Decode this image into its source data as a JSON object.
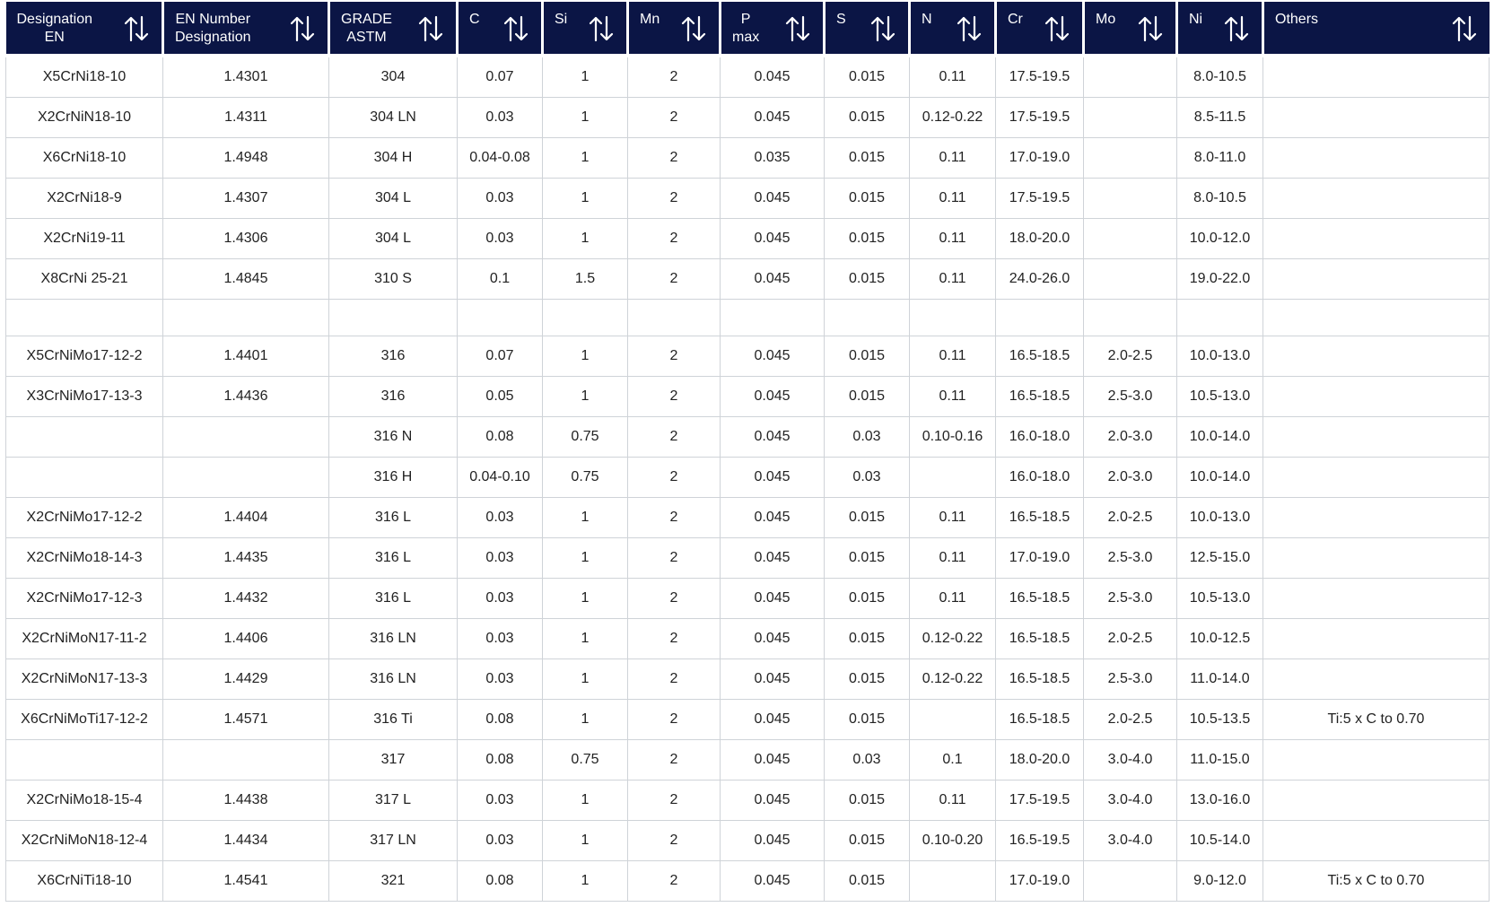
{
  "colors": {
    "header_bg": "#0b1545",
    "header_text": "#ffffff",
    "grid": "#cfd3d8"
  },
  "headers": [
    {
      "line1": "Designation",
      "line2": "EN",
      "icon": "sort-arrows-icon"
    },
    {
      "line1": "EN Number",
      "line2": "Designation",
      "icon": "sort-arrows-icon"
    },
    {
      "line1": "GRADE",
      "line2": "ASTM",
      "icon": "sort-arrows-icon"
    },
    {
      "line1": "C",
      "line2": "",
      "icon": "sort-arrows-icon"
    },
    {
      "line1": "Si",
      "line2": "",
      "icon": "sort-arrows-icon"
    },
    {
      "line1": "Mn",
      "line2": "",
      "icon": "sort-arrows-icon"
    },
    {
      "line1": "P",
      "line2": "max",
      "icon": "sort-arrows-icon"
    },
    {
      "line1": "S",
      "line2": "",
      "icon": "sort-arrows-icon"
    },
    {
      "line1": "N",
      "line2": "",
      "icon": "sort-arrows-icon"
    },
    {
      "line1": "Cr",
      "line2": "",
      "icon": "sort-arrows-icon"
    },
    {
      "line1": "Mo",
      "line2": "",
      "icon": "sort-arrows-icon"
    },
    {
      "line1": "Ni",
      "line2": "",
      "icon": "sort-arrows-icon"
    },
    {
      "line1": "Others",
      "line2": "",
      "icon": "sort-arrows-icon"
    }
  ],
  "rows": [
    [
      "X5CrNi18-10",
      "1.4301",
      "304",
      "0.07",
      "1",
      "2",
      "0.045",
      "0.015",
      "0.11",
      "17.5-19.5",
      "",
      "8.0-10.5",
      ""
    ],
    [
      "X2CrNiN18-10",
      "1.4311",
      "304 LN",
      "0.03",
      "1",
      "2",
      "0.045",
      "0.015",
      "0.12-0.22",
      "17.5-19.5",
      "",
      "8.5-11.5",
      ""
    ],
    [
      "X6CrNi18-10",
      "1.4948",
      "304 H",
      "0.04-0.08",
      "1",
      "2",
      "0.035",
      "0.015",
      "0.11",
      "17.0-19.0",
      "",
      "8.0-11.0",
      ""
    ],
    [
      "X2CrNi18-9",
      "1.4307",
      "304 L",
      "0.03",
      "1",
      "2",
      "0.045",
      "0.015",
      "0.11",
      "17.5-19.5",
      "",
      "8.0-10.5",
      ""
    ],
    [
      "X2CrNi19-11",
      "1.4306",
      "304 L",
      "0.03",
      "1",
      "2",
      "0.045",
      "0.015",
      "0.11",
      "18.0-20.0",
      "",
      "10.0-12.0",
      ""
    ],
    [
      "X8CrNi 25-21",
      "1.4845",
      "310 S",
      "0.1",
      "1.5",
      "2",
      "0.045",
      "0.015",
      "0.11",
      "24.0-26.0",
      "",
      "19.0-22.0",
      ""
    ],
    [
      "",
      "",
      "",
      "",
      "",
      "",
      "",
      "",
      "",
      "",
      "",
      "",
      ""
    ],
    [
      "X5CrNiMo17-12-2",
      "1.4401",
      "316",
      "0.07",
      "1",
      "2",
      "0.045",
      "0.015",
      "0.11",
      "16.5-18.5",
      "2.0-2.5",
      "10.0-13.0",
      ""
    ],
    [
      "X3CrNiMo17-13-3",
      "1.4436",
      "316",
      "0.05",
      "1",
      "2",
      "0.045",
      "0.015",
      "0.11",
      "16.5-18.5",
      "2.5-3.0",
      "10.5-13.0",
      ""
    ],
    [
      "",
      "",
      "316 N",
      "0.08",
      "0.75",
      "2",
      "0.045",
      "0.03",
      "0.10-0.16",
      "16.0-18.0",
      "2.0-3.0",
      "10.0-14.0",
      ""
    ],
    [
      "",
      "",
      "316 H",
      "0.04-0.10",
      "0.75",
      "2",
      "0.045",
      "0.03",
      "",
      "16.0-18.0",
      "2.0-3.0",
      "10.0-14.0",
      ""
    ],
    [
      "X2CrNiMo17-12-2",
      "1.4404",
      "316 L",
      "0.03",
      "1",
      "2",
      "0.045",
      "0.015",
      "0.11",
      "16.5-18.5",
      "2.0-2.5",
      "10.0-13.0",
      ""
    ],
    [
      "X2CrNiMo18-14-3",
      "1.4435",
      "316 L",
      "0.03",
      "1",
      "2",
      "0.045",
      "0.015",
      "0.11",
      "17.0-19.0",
      "2.5-3.0",
      "12.5-15.0",
      ""
    ],
    [
      "X2CrNiMo17-12-3",
      "1.4432",
      "316 L",
      "0.03",
      "1",
      "2",
      "0.045",
      "0.015",
      "0.11",
      "16.5-18.5",
      "2.5-3.0",
      "10.5-13.0",
      ""
    ],
    [
      "X2CrNiMoN17-11-2",
      "1.4406",
      "316 LN",
      "0.03",
      "1",
      "2",
      "0.045",
      "0.015",
      "0.12-0.22",
      "16.5-18.5",
      "2.0-2.5",
      "10.0-12.5",
      ""
    ],
    [
      "X2CrNiMoN17-13-3",
      "1.4429",
      "316 LN",
      "0.03",
      "1",
      "2",
      "0.045",
      "0.015",
      "0.12-0.22",
      "16.5-18.5",
      "2.5-3.0",
      "11.0-14.0",
      ""
    ],
    [
      "X6CrNiMoTi17-12-2",
      "1.4571",
      "316 Ti",
      "0.08",
      "1",
      "2",
      "0.045",
      "0.015",
      "",
      "16.5-18.5",
      "2.0-2.5",
      "10.5-13.5",
      "Ti:5 x C to 0.70"
    ],
    [
      "",
      "",
      "317",
      "0.08",
      "0.75",
      "2",
      "0.045",
      "0.03",
      "0.1",
      "18.0-20.0",
      "3.0-4.0",
      "11.0-15.0",
      ""
    ],
    [
      "X2CrNiMo18-15-4",
      "1.4438",
      "317 L",
      "0.03",
      "1",
      "2",
      "0.045",
      "0.015",
      "0.11",
      "17.5-19.5",
      "3.0-4.0",
      "13.0-16.0",
      ""
    ],
    [
      "X2CrNiMoN18-12-4",
      "1.4434",
      "317 LN",
      "0.03",
      "1",
      "2",
      "0.045",
      "0.015",
      "0.10-0.20",
      "16.5-19.5",
      "3.0-4.0",
      "10.5-14.0",
      ""
    ],
    [
      "X6CrNiTi18-10",
      "1.4541",
      "321",
      "0.08",
      "1",
      "2",
      "0.045",
      "0.015",
      "",
      "17.0-19.0",
      "",
      "9.0-12.0",
      "Ti:5 x C to 0.70"
    ]
  ]
}
